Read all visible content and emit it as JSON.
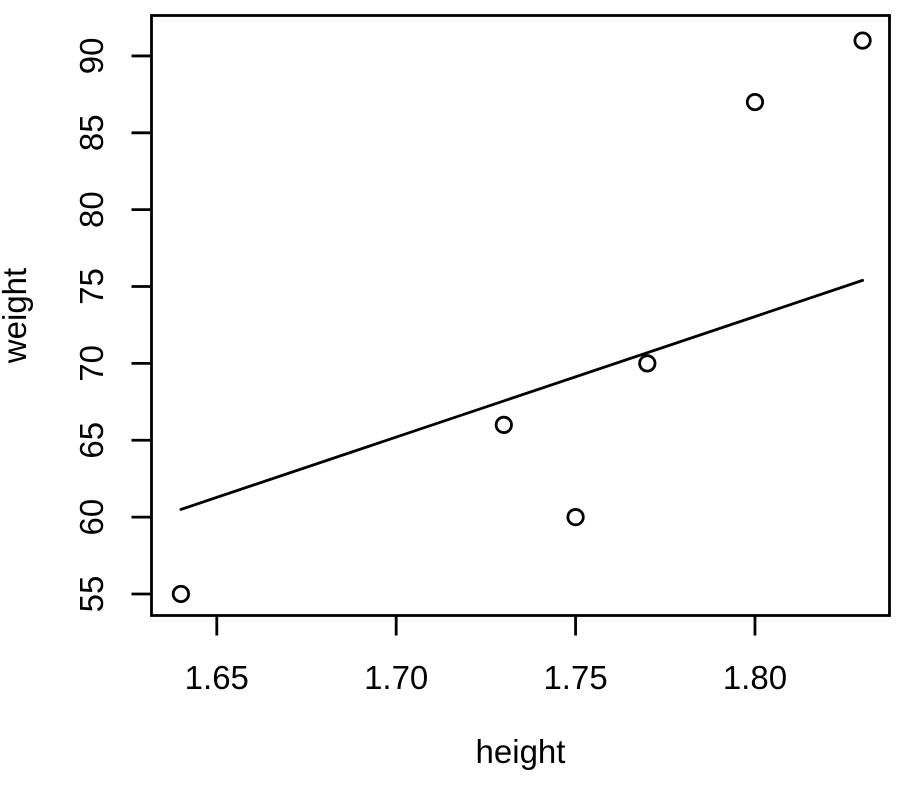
{
  "chart_data": {
    "type": "scatter",
    "title": "",
    "xlabel": "height",
    "ylabel": "weight",
    "points": [
      {
        "x": 1.64,
        "y": 55
      },
      {
        "x": 1.73,
        "y": 66
      },
      {
        "x": 1.75,
        "y": 60
      },
      {
        "x": 1.77,
        "y": 70
      },
      {
        "x": 1.8,
        "y": 87
      },
      {
        "x": 1.83,
        "y": 91
      }
    ],
    "fit_line": {
      "x1": 1.64,
      "y1": 60.5,
      "x2": 1.83,
      "y2": 75.4
    },
    "x_ticks": {
      "values": [
        1.65,
        1.7,
        1.75,
        1.8
      ],
      "labels": [
        "1.65",
        "1.70",
        "1.75",
        "1.80"
      ]
    },
    "y_ticks": {
      "values": [
        55,
        60,
        65,
        70,
        75,
        80,
        85,
        90
      ],
      "labels": [
        "55",
        "60",
        "65",
        "70",
        "75",
        "80",
        "85",
        "90"
      ]
    },
    "xlim": [
      1.6318,
      1.8375
    ],
    "ylim": [
      53.6,
      92.63
    ],
    "grid": false,
    "legend": false,
    "marker": "open-circle",
    "colors": {
      "foreground": "#000000",
      "background": "#ffffff"
    }
  }
}
